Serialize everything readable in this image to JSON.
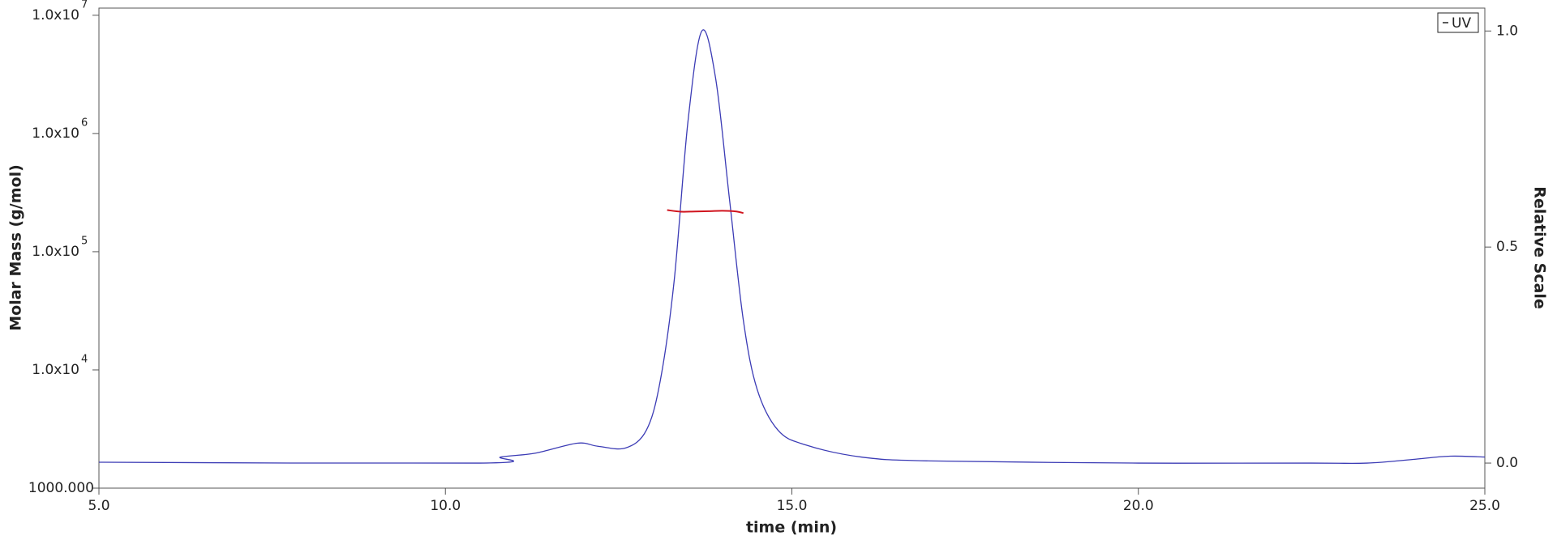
{
  "chart_data": {
    "type": "line",
    "x_label": "time (min)",
    "y_label": "Molar Mass (g/mol)",
    "y2_label": "Relative Scale",
    "xlim": [
      5.0,
      25.0
    ],
    "xticks": [
      {
        "value": 5,
        "label": "5.0"
      },
      {
        "value": 10,
        "label": "10.0"
      },
      {
        "value": 15,
        "label": "15.0"
      },
      {
        "value": 20,
        "label": "20.0"
      },
      {
        "value": 25,
        "label": "25.0"
      }
    ],
    "ylim": [
      1000,
      11500000
    ],
    "y_log_scale": true,
    "yticks": [
      {
        "value": 1000,
        "label": "1000.000"
      },
      {
        "value": 10000,
        "label": "1.0x10",
        "exponent": "4"
      },
      {
        "value": 100000,
        "label": "1.0x10",
        "exponent": "5"
      },
      {
        "value": 1000000,
        "label": "1.0x10",
        "exponent": "6"
      },
      {
        "value": 10000000,
        "label": "1.0x10",
        "exponent": "7"
      }
    ],
    "y2lim": [
      -0.058,
      1.053
    ],
    "y2ticks": [
      {
        "value": 0,
        "label": "0.0"
      },
      {
        "value": 0.5,
        "label": "0.5"
      },
      {
        "value": 1,
        "label": "1.0"
      }
    ],
    "legend_position": "upper right",
    "series": [
      {
        "name": "UV",
        "color": "#3b3bb5",
        "axis": "y2",
        "x": [
          5.0,
          10.5,
          10.8,
          11.3,
          11.9,
          12.2,
          12.6,
          12.9,
          13.1,
          13.3,
          13.5,
          13.7,
          13.9,
          14.1,
          14.3,
          14.5,
          14.8,
          15.2,
          16.0,
          17.0,
          20.0,
          22.5,
          23.3,
          24.0,
          24.5,
          25.0
        ],
        "values": [
          0.002,
          0.0,
          0.014,
          0.023,
          0.046,
          0.039,
          0.035,
          0.076,
          0.19,
          0.42,
          0.79,
          1.0,
          0.89,
          0.61,
          0.33,
          0.17,
          0.076,
          0.042,
          0.014,
          0.005,
          0.0,
          0.0,
          0.0,
          0.009,
          0.016,
          0.014
        ]
      },
      {
        "color": "#d0141e",
        "axis": "y",
        "x": [
          13.2,
          13.4,
          13.6,
          13.8,
          14.0,
          14.2,
          14.3
        ],
        "values": [
          225000,
          218000,
          219000,
          220000,
          222000,
          219000,
          212000
        ]
      }
    ]
  }
}
